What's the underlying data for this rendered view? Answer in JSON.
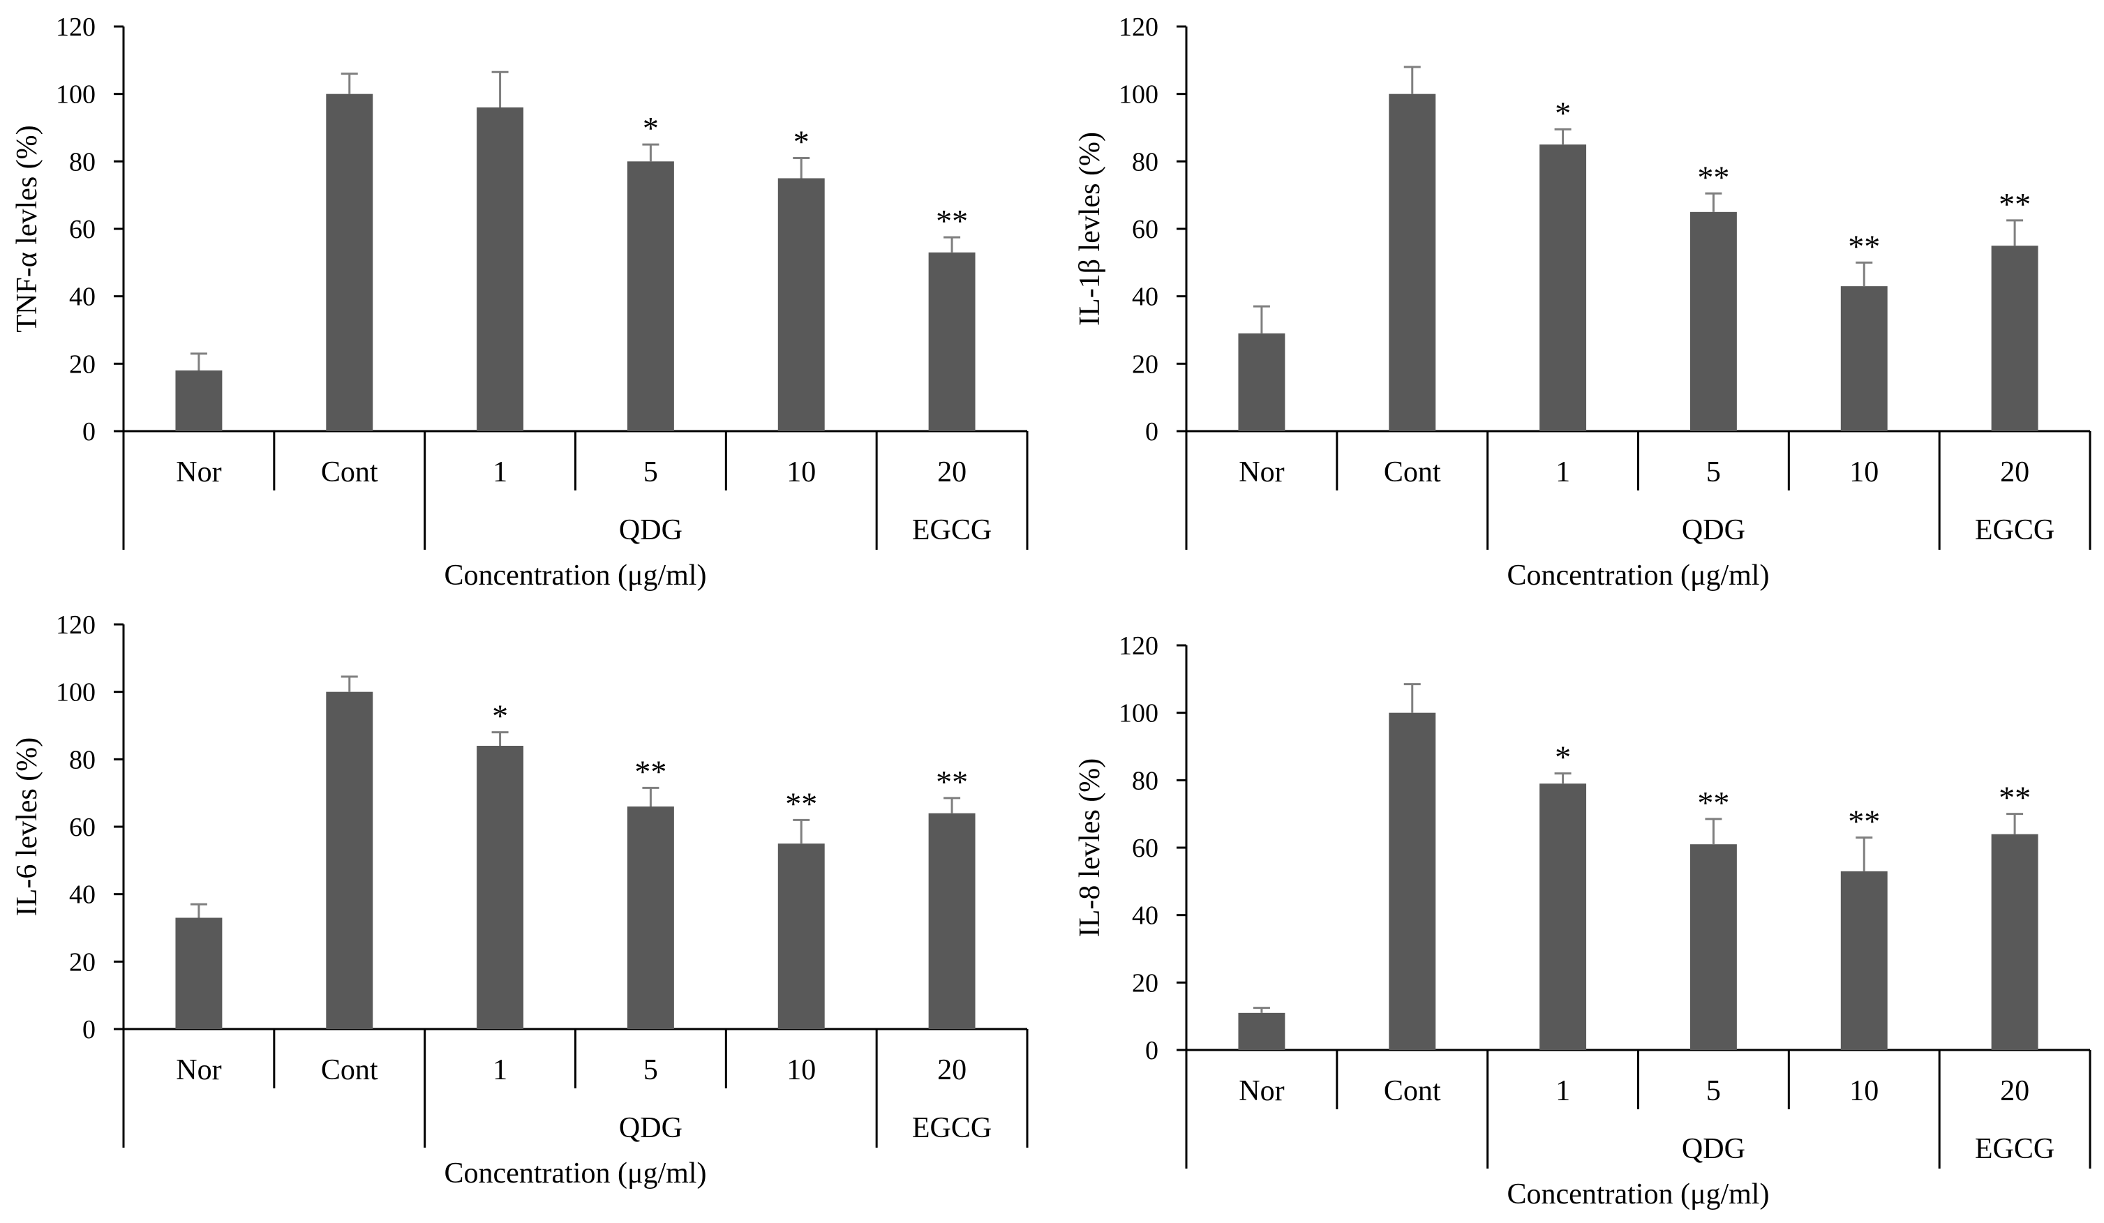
{
  "chart_data": [
    {
      "type": "bar",
      "ylabel": "TNF-α levles (%)",
      "xlabel": "Concentration (μg/ml)",
      "ylim": [
        0,
        120
      ],
      "yticks": [
        "0",
        "20",
        "40",
        "60",
        "80",
        "100",
        "120"
      ],
      "categories": [
        "Nor",
        "Cont",
        "1",
        "5",
        "10",
        "20"
      ],
      "groups": [
        {
          "label": "QDG",
          "start": 2,
          "end": 4
        },
        {
          "label": "EGCG",
          "start": 5,
          "end": 5
        }
      ],
      "values": [
        18,
        100,
        96,
        80,
        75,
        53
      ],
      "errors": [
        5,
        6,
        10.5,
        5,
        6,
        4.5
      ],
      "significance": [
        "",
        "",
        "",
        "*",
        "*",
        "**"
      ],
      "color": "#595959"
    },
    {
      "type": "bar",
      "ylabel": "IL-1β levles (%)",
      "xlabel": "Concentration (μg/ml)",
      "ylim": [
        0,
        120
      ],
      "yticks": [
        "0",
        "20",
        "40",
        "60",
        "80",
        "100",
        "120"
      ],
      "categories": [
        "Nor",
        "Cont",
        "1",
        "5",
        "10",
        "20"
      ],
      "groups": [
        {
          "label": "QDG",
          "start": 2,
          "end": 4
        },
        {
          "label": "EGCG",
          "start": 5,
          "end": 5
        }
      ],
      "values": [
        29,
        100,
        85,
        65,
        43,
        55
      ],
      "errors": [
        8,
        8,
        4.5,
        5.5,
        7,
        7.5
      ],
      "significance": [
        "",
        "",
        "*",
        "**",
        "**",
        "**"
      ],
      "color": "#595959"
    },
    {
      "type": "bar",
      "ylabel": "IL-6 levles (%)",
      "xlabel": "Concentration (μg/ml)",
      "ylim": [
        0,
        120
      ],
      "yticks": [
        "0",
        "20",
        "40",
        "60",
        "80",
        "100",
        "120"
      ],
      "categories": [
        "Nor",
        "Cont",
        "1",
        "5",
        "10",
        "20"
      ],
      "groups": [
        {
          "label": "QDG",
          "start": 2,
          "end": 4
        },
        {
          "label": "EGCG",
          "start": 5,
          "end": 5
        }
      ],
      "values": [
        33,
        100,
        84,
        66,
        55,
        64
      ],
      "errors": [
        4,
        4.5,
        4,
        5.5,
        7,
        4.5
      ],
      "significance": [
        "",
        "",
        "*",
        "**",
        "**",
        "**"
      ],
      "color": "#595959"
    },
    {
      "type": "bar",
      "ylabel": "IL-8 levles (%)",
      "xlabel": "Concentration (μg/ml)",
      "ylim": [
        0,
        120
      ],
      "yticks": [
        "0",
        "20",
        "40",
        "60",
        "80",
        "100",
        "120"
      ],
      "categories": [
        "Nor",
        "Cont",
        "1",
        "5",
        "10",
        "20"
      ],
      "groups": [
        {
          "label": "QDG",
          "start": 2,
          "end": 4
        },
        {
          "label": "EGCG",
          "start": 5,
          "end": 5
        }
      ],
      "values": [
        11,
        100,
        79,
        61,
        53,
        64
      ],
      "errors": [
        1.5,
        8.5,
        3,
        7.5,
        10,
        6
      ],
      "significance": [
        "",
        "",
        "*",
        "**",
        "**",
        "**"
      ],
      "color": "#595959"
    }
  ]
}
